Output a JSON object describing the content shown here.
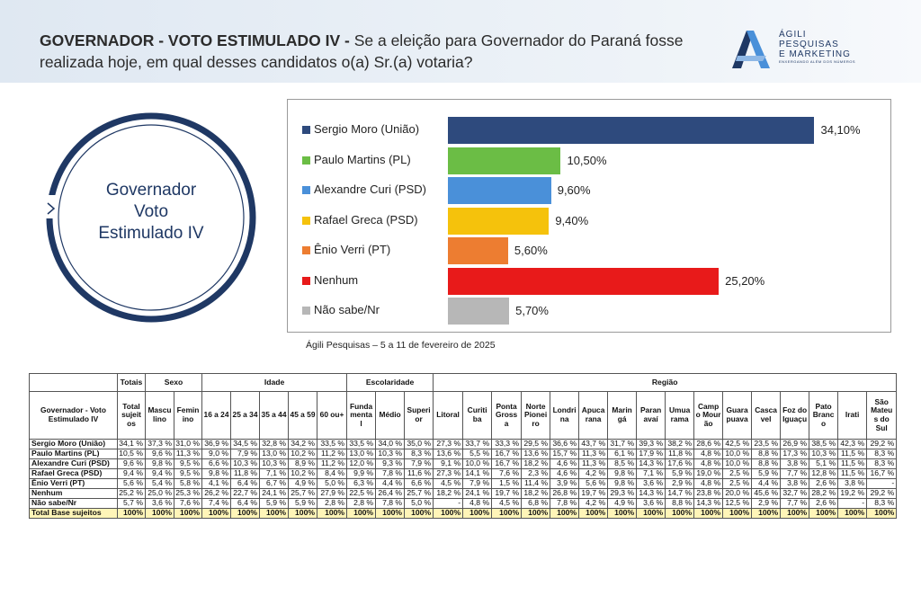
{
  "header": {
    "title_bold": "GOVERNADOR - VOTO ESTIMULADO IV -",
    "title_rest": " Se a eleição para Governador do Paraná fosse realizada hoje, em qual desses candidatos o(a) Sr.(a) votaria?"
  },
  "logo": {
    "line1": "ÁGILI",
    "line2": "PESQUISAS",
    "line3": "E MARKETING",
    "tagline": "ENXERGANDO ALÉM DOS NÚMEROS"
  },
  "circle": {
    "line1": "Governador",
    "line2": "Voto",
    "line3": "Estimulado IV"
  },
  "colors": {
    "navy": "#1f3864",
    "bar_moro": "#2e4a7d",
    "bar_martins": "#6bbd45",
    "bar_curi": "#4a90d9",
    "bar_greca": "#f5c20c",
    "bar_verri": "#ed7d31",
    "bar_nenhum": "#e81a1a",
    "bar_naosabe": "#b7b7b7",
    "total_row": "#fff5b8"
  },
  "chart_data": {
    "type": "bar",
    "orientation": "horizontal",
    "categories": [
      "Sergio Moro (União)",
      "Paulo Martins (PL)",
      "Alexandre Curi (PSD)",
      "Rafael Greca (PSD)",
      "Ênio Verri (PT)",
      "Nenhum",
      "Não sabe/Nr"
    ],
    "values": [
      34.1,
      10.5,
      9.6,
      9.4,
      5.6,
      25.2,
      5.7
    ],
    "value_labels": [
      "34,10%",
      "10,50%",
      "9,60%",
      "9,40%",
      "5,60%",
      "25,20%",
      "5,70%"
    ],
    "colors": [
      "#2e4a7d",
      "#6bbd45",
      "#4a90d9",
      "#f5c20c",
      "#ed7d31",
      "#e81a1a",
      "#b7b7b7"
    ],
    "xlim": [
      0,
      36
    ],
    "grid": false,
    "legend": "left"
  },
  "source": "Ágili Pesquisas – 5 a 11 de fevereiro de 2025",
  "table": {
    "group_headers": [
      {
        "label": "",
        "span": 1
      },
      {
        "label": "Totais",
        "span": 1
      },
      {
        "label": "Sexo",
        "span": 2
      },
      {
        "label": "Idade",
        "span": 5
      },
      {
        "label": "Escolaridade",
        "span": 3
      },
      {
        "label": "Região",
        "span": 16
      }
    ],
    "column_headers": [
      "Governador - Voto Estimulado IV",
      "Total sujeit os",
      "Mascu lino",
      "Femin ino",
      "16 a 24",
      "25 a 34",
      "35 a 44",
      "45 a 59",
      "60 ou+",
      "Funda menta l",
      "Médio",
      "Superi or",
      "Litoral",
      "Curiti ba",
      "Ponta Gross a",
      "Norte Pionei ro",
      "Londri na",
      "Apuca rana",
      "Marin gá",
      "Paran avaí",
      "Umua rama",
      "Camp o Mour ão",
      "Guara puava",
      "Casca vel",
      "Foz do Iguaçu",
      "Pato Branc o",
      "Irati",
      "São Mateu s do Sul"
    ],
    "rows": [
      {
        "label": "Sergio Moro (União)",
        "values": [
          "34,1 %",
          "37,3 %",
          "31,0 %",
          "36,9 %",
          "34,5 %",
          "32,8 %",
          "34,2 %",
          "33,5 %",
          "33,5 %",
          "34,0 %",
          "35,0 %",
          "27,3 %",
          "33,7 %",
          "33,3 %",
          "29,5 %",
          "36,6 %",
          "43,7 %",
          "31,7 %",
          "39,3 %",
          "38,2 %",
          "28,6 %",
          "42,5 %",
          "23,5 %",
          "26,9 %",
          "38,5 %",
          "42,3 %",
          "29,2 %"
        ]
      },
      {
        "label": "Paulo Martins (PL)",
        "values": [
          "10,5 %",
          "9,6 %",
          "11,3 %",
          "9,0 %",
          "7,9 %",
          "13,0 %",
          "10,2 %",
          "11,2 %",
          "13,0 %",
          "10,3 %",
          "8,3 %",
          "13,6 %",
          "5,5 %",
          "16,7 %",
          "13,6 %",
          "15,7 %",
          "11,3 %",
          "6,1 %",
          "17,9 %",
          "11,8 %",
          "4,8 %",
          "10,0 %",
          "8,8 %",
          "17,3 %",
          "10,3 %",
          "11,5 %",
          "8,3 %"
        ]
      },
      {
        "label": "Alexandre Curi (PSD)",
        "values": [
          "9,6 %",
          "9,8 %",
          "9,5 %",
          "6,6 %",
          "10,3 %",
          "10,3 %",
          "8,9 %",
          "11,2 %",
          "12,0 %",
          "9,3 %",
          "7,9 %",
          "9,1 %",
          "10,0 %",
          "16,7 %",
          "18,2 %",
          "4,6 %",
          "11,3 %",
          "8,5 %",
          "14,3 %",
          "17,6 %",
          "4,8 %",
          "10,0 %",
          "8,8 %",
          "3,8 %",
          "5,1 %",
          "11,5 %",
          "8,3 %"
        ]
      },
      {
        "label": "Rafael Greca (PSD)",
        "values": [
          "9,4 %",
          "9,4 %",
          "9,5 %",
          "9,8 %",
          "11,8 %",
          "7,1 %",
          "10,2 %",
          "8,4 %",
          "9,9 %",
          "7,8 %",
          "11,6 %",
          "27,3 %",
          "14,1 %",
          "7,6 %",
          "2,3 %",
          "4,6 %",
          "4,2 %",
          "9,8 %",
          "7,1 %",
          "5,9 %",
          "19,0 %",
          "2,5 %",
          "5,9 %",
          "7,7 %",
          "12,8 %",
          "11,5 %",
          "16,7 %"
        ]
      },
      {
        "label": "Ênio Verri (PT)",
        "values": [
          "5,6 %",
          "5,4 %",
          "5,8 %",
          "4,1 %",
          "6,4 %",
          "6,7 %",
          "4,9 %",
          "5,0 %",
          "6,3 %",
          "4,4 %",
          "6,6 %",
          "4,5 %",
          "7,9 %",
          "1,5 %",
          "11,4 %",
          "3,9 %",
          "5,6 %",
          "9,8 %",
          "3,6 %",
          "2,9 %",
          "4,8 %",
          "2,5 %",
          "4,4 %",
          "3,8 %",
          "2,6 %",
          "3,8 %",
          "-"
        ]
      },
      {
        "label": "Nenhum",
        "values": [
          "25,2 %",
          "25,0 %",
          "25,3 %",
          "26,2 %",
          "22,7 %",
          "24,1 %",
          "25,7 %",
          "27,9 %",
          "22,5 %",
          "26,4 %",
          "25,7 %",
          "18,2 %",
          "24,1 %",
          "19,7 %",
          "18,2 %",
          "26,8 %",
          "19,7 %",
          "29,3 %",
          "14,3 %",
          "14,7 %",
          "23,8 %",
          "20,0 %",
          "45,6 %",
          "32,7 %",
          "28,2 %",
          "19,2 %",
          "29,2 %"
        ]
      },
      {
        "label": "Não sabe/Nr",
        "values": [
          "5,7 %",
          "3,6 %",
          "7,6 %",
          "7,4 %",
          "6,4 %",
          "5,9 %",
          "5,9 %",
          "2,8 %",
          "2,8 %",
          "7,8 %",
          "5,0 %",
          "-",
          "4,8 %",
          "4,5 %",
          "6,8 %",
          "7,8 %",
          "4,2 %",
          "4,9 %",
          "3,6 %",
          "8,8 %",
          "14,3 %",
          "12,5 %",
          "2,9 %",
          "7,7 %",
          "2,6 %",
          "-",
          "8,3 %"
        ]
      }
    ],
    "total_row": {
      "label": "Total Base sujeitos",
      "values": [
        "100%",
        "100%",
        "100%",
        "100%",
        "100%",
        "100%",
        "100%",
        "100%",
        "100%",
        "100%",
        "100%",
        "100%",
        "100%",
        "100%",
        "100%",
        "100%",
        "100%",
        "100%",
        "100%",
        "100%",
        "100%",
        "100%",
        "100%",
        "100%",
        "100%",
        "100%",
        "100%"
      ]
    }
  }
}
